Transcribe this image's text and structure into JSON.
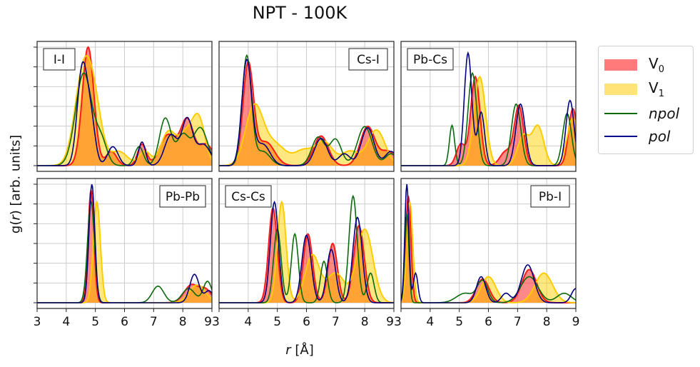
{
  "title": "NPT - 100K",
  "xlabel_r": "r",
  "xlabel_unit": " [Å]",
  "ylabel_g": "g(",
  "ylabel_r": "r",
  "ylabel_rest": ") [arb. units]",
  "legend": [
    {
      "base": "V",
      "sub": "0",
      "italic": false,
      "kind": "fill",
      "color": "#ff4d4d"
    },
    {
      "base": "V",
      "sub": "1",
      "italic": false,
      "kind": "fill",
      "color": "#ffd92e"
    },
    {
      "base": "npol",
      "sub": "",
      "italic": true,
      "kind": "line",
      "color": "#0b6a0b"
    },
    {
      "base": "pol",
      "sub": "",
      "italic": true,
      "kind": "line",
      "color": "#00008b"
    }
  ],
  "chart_data": {
    "type": "line",
    "x_ticks": [
      3,
      4,
      5,
      6,
      7,
      8,
      9
    ],
    "x_tick_labels_last_col": [
      "3",
      "4",
      "5",
      "6",
      "7",
      "8",
      "9"
    ],
    "x_tick_labels_other_cols": [
      "3",
      "4",
      "5",
      "6",
      "7",
      "8",
      "93"
    ],
    "xlim": [
      3,
      9
    ],
    "ylim": [
      0,
      1.05
    ],
    "series_colors": {
      "V0": "#ff3b3b",
      "V1": "#ffd200",
      "overlap": "#ffa030",
      "npol": "#0b6a0b",
      "pol": "#000080"
    },
    "panels": [
      {
        "label": "I-I",
        "label_pos": "top-left",
        "row": 0,
        "col": 0,
        "V0": [
          [
            4.75,
            1.0,
            0.2
          ],
          [
            5.55,
            0.12,
            0.18
          ],
          [
            6.6,
            0.18,
            0.15
          ],
          [
            7.5,
            0.26,
            0.28
          ],
          [
            8.15,
            0.38,
            0.22
          ],
          [
            8.8,
            0.18,
            0.25
          ]
        ],
        "V1": [
          [
            4.6,
            0.8,
            0.3
          ],
          [
            5.0,
            0.35,
            0.25
          ],
          [
            5.8,
            0.12,
            0.3
          ],
          [
            6.7,
            0.12,
            0.2
          ],
          [
            7.5,
            0.28,
            0.25
          ],
          [
            8.1,
            0.25,
            0.25
          ],
          [
            8.55,
            0.38,
            0.22
          ]
        ],
        "npol": [
          [
            4.6,
            0.78,
            0.28
          ],
          [
            5.2,
            0.2,
            0.2
          ],
          [
            6.5,
            0.16,
            0.15
          ],
          [
            7.4,
            0.4,
            0.2
          ],
          [
            8.0,
            0.25,
            0.2
          ],
          [
            8.6,
            0.32,
            0.25
          ]
        ],
        "pol": [
          [
            4.55,
            0.82,
            0.17
          ],
          [
            4.85,
            0.35,
            0.15
          ],
          [
            5.6,
            0.16,
            0.18
          ],
          [
            6.6,
            0.2,
            0.12
          ],
          [
            7.6,
            0.26,
            0.22
          ],
          [
            8.15,
            0.38,
            0.18
          ],
          [
            8.7,
            0.18,
            0.25
          ]
        ]
      },
      {
        "label": "Cs-I",
        "label_pos": "top-right",
        "row": 0,
        "col": 1,
        "V0": [
          [
            4.0,
            0.85,
            0.18
          ],
          [
            4.6,
            0.2,
            0.3
          ],
          [
            6.5,
            0.25,
            0.25
          ],
          [
            8.1,
            0.33,
            0.25
          ],
          [
            8.8,
            0.12,
            0.25
          ]
        ],
        "V1": [
          [
            4.2,
            0.48,
            0.3
          ],
          [
            4.9,
            0.18,
            0.4
          ],
          [
            5.9,
            0.12,
            0.3
          ],
          [
            6.6,
            0.2,
            0.3
          ],
          [
            7.5,
            0.12,
            0.3
          ],
          [
            8.4,
            0.3,
            0.3
          ]
        ],
        "npol": [
          [
            3.95,
            0.92,
            0.16
          ],
          [
            4.5,
            0.12,
            0.25
          ],
          [
            6.4,
            0.24,
            0.22
          ],
          [
            7.0,
            0.22,
            0.2
          ],
          [
            8.0,
            0.33,
            0.25
          ],
          [
            8.9,
            0.1,
            0.2
          ]
        ],
        "pol": [
          [
            3.95,
            0.88,
            0.17
          ],
          [
            4.5,
            0.18,
            0.25
          ],
          [
            6.5,
            0.23,
            0.22
          ],
          [
            7.3,
            0.1,
            0.2
          ],
          [
            8.1,
            0.32,
            0.22
          ],
          [
            8.9,
            0.12,
            0.2
          ]
        ]
      },
      {
        "label": "Pb-Cs",
        "label_pos": "top-left",
        "row": 0,
        "col": 2,
        "V0": [
          [
            5.55,
            0.75,
            0.16
          ],
          [
            5.05,
            0.18,
            0.15
          ],
          [
            7.05,
            0.5,
            0.16
          ],
          [
            6.6,
            0.12,
            0.2
          ],
          [
            8.9,
            0.48,
            0.15
          ]
        ],
        "V1": [
          [
            5.7,
            0.75,
            0.2
          ],
          [
            7.7,
            0.33,
            0.2
          ],
          [
            7.2,
            0.25,
            0.2
          ],
          [
            8.9,
            0.4,
            0.2
          ]
        ],
        "npol": [
          [
            4.75,
            0.34,
            0.09
          ],
          [
            5.45,
            0.78,
            0.15
          ],
          [
            6.95,
            0.52,
            0.16
          ],
          [
            8.7,
            0.44,
            0.15
          ]
        ],
        "pol": [
          [
            5.3,
            0.95,
            0.13
          ],
          [
            5.75,
            0.45,
            0.12
          ],
          [
            7.1,
            0.52,
            0.16
          ],
          [
            8.8,
            0.55,
            0.14
          ]
        ]
      },
      {
        "label": "Pb-Pb",
        "label_pos": "top-right",
        "row": 1,
        "col": 0,
        "V0": [
          [
            4.85,
            0.95,
            0.1
          ],
          [
            8.3,
            0.15,
            0.25
          ],
          [
            8.8,
            0.1,
            0.2
          ]
        ],
        "V1": [
          [
            5.05,
            0.85,
            0.12
          ],
          [
            8.5,
            0.15,
            0.28
          ]
        ],
        "npol": [
          [
            4.85,
            0.85,
            0.12
          ],
          [
            7.15,
            0.14,
            0.2
          ],
          [
            8.2,
            0.12,
            0.22
          ],
          [
            8.85,
            0.18,
            0.15
          ]
        ],
        "pol": [
          [
            4.88,
            1.0,
            0.1
          ],
          [
            8.4,
            0.24,
            0.16
          ],
          [
            8.9,
            0.1,
            0.15
          ]
        ]
      },
      {
        "label": "Cs-Cs",
        "label_pos": "top-left",
        "row": 1,
        "col": 1,
        "V0": [
          [
            4.85,
            0.8,
            0.15
          ],
          [
            6.05,
            0.58,
            0.16
          ],
          [
            6.9,
            0.5,
            0.16
          ],
          [
            7.8,
            0.65,
            0.18
          ]
        ],
        "V1": [
          [
            5.15,
            0.85,
            0.15
          ],
          [
            6.2,
            0.4,
            0.25
          ],
          [
            7.0,
            0.25,
            0.3
          ],
          [
            8.0,
            0.62,
            0.28
          ]
        ],
        "npol": [
          [
            5.0,
            0.62,
            0.13
          ],
          [
            5.6,
            0.58,
            0.12
          ],
          [
            6.6,
            0.35,
            0.12
          ],
          [
            7.6,
            0.9,
            0.14
          ],
          [
            8.2,
            0.25,
            0.12
          ]
        ],
        "pol": [
          [
            4.9,
            0.85,
            0.14
          ],
          [
            6.0,
            0.57,
            0.16
          ],
          [
            6.85,
            0.45,
            0.15
          ],
          [
            7.75,
            0.72,
            0.16
          ]
        ]
      },
      {
        "label": "Pb-I",
        "label_pos": "top-right",
        "row": 1,
        "col": 2,
        "V0": [
          [
            3.25,
            0.9,
            0.09
          ],
          [
            5.8,
            0.2,
            0.22
          ],
          [
            7.4,
            0.28,
            0.25
          ]
        ],
        "V1": [
          [
            3.3,
            0.85,
            0.1
          ],
          [
            6.0,
            0.22,
            0.25
          ],
          [
            7.9,
            0.25,
            0.3
          ]
        ],
        "npol": [
          [
            3.2,
            0.75,
            0.07
          ],
          [
            5.2,
            0.08,
            0.3
          ],
          [
            5.8,
            0.18,
            0.18
          ],
          [
            7.4,
            0.22,
            0.3
          ],
          [
            8.6,
            0.08,
            0.25
          ]
        ],
        "pol": [
          [
            3.2,
            1.0,
            0.07
          ],
          [
            3.5,
            0.25,
            0.08
          ],
          [
            5.75,
            0.22,
            0.16
          ],
          [
            6.6,
            0.08,
            0.15
          ],
          [
            7.35,
            0.32,
            0.22
          ],
          [
            9.0,
            0.12,
            0.15
          ]
        ]
      }
    ]
  }
}
